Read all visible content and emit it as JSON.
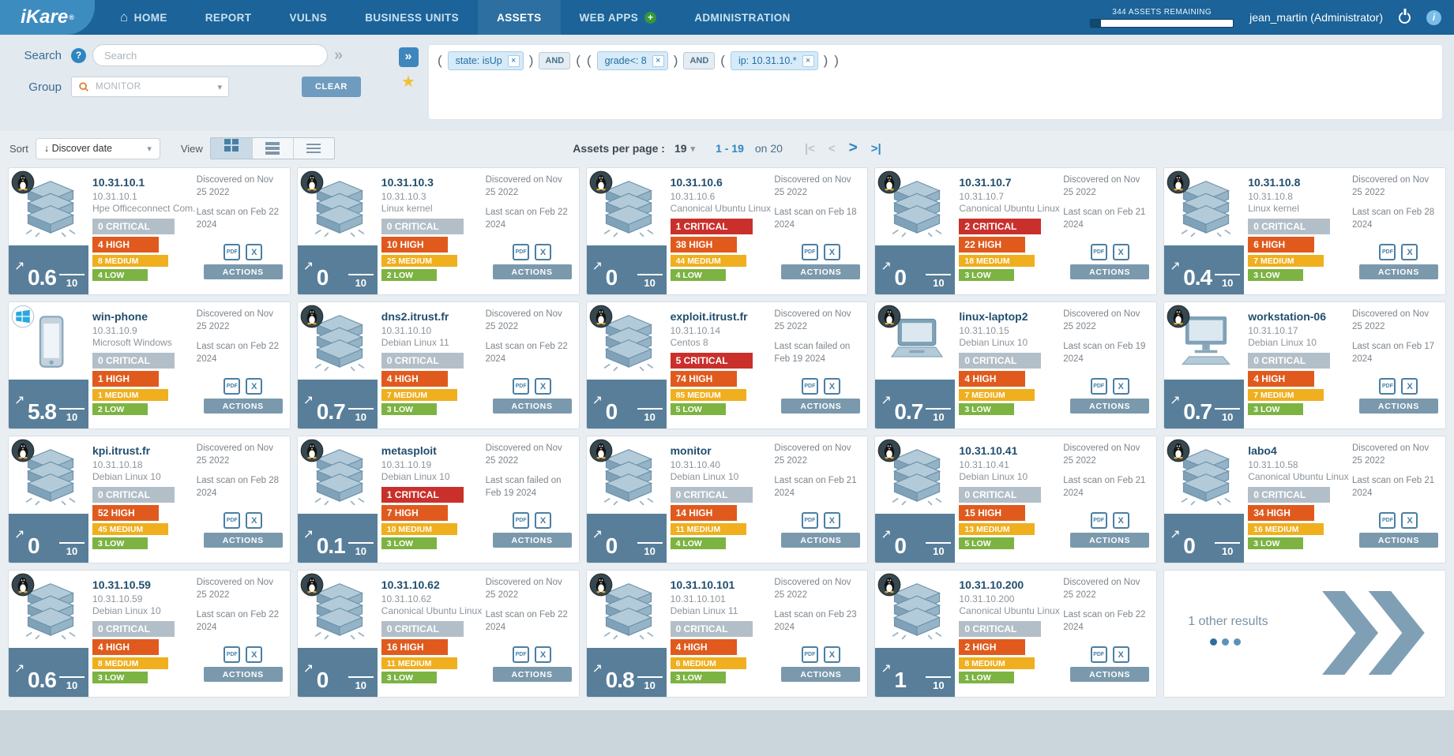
{
  "navbar": {
    "logo": "iKare",
    "items": [
      {
        "label": "HOME",
        "icon": "home"
      },
      {
        "label": "REPORT"
      },
      {
        "label": "VULNS"
      },
      {
        "label": "BUSINESS UNITS"
      },
      {
        "label": "ASSETS",
        "active": true
      },
      {
        "label": "WEB APPS",
        "plus": true
      },
      {
        "label": "ADMINISTRATION"
      }
    ],
    "assets_remaining": "344 ASSETS REMAINING",
    "user": "jean_martin (Administrator)"
  },
  "icons": {
    "home": "⌂",
    "plus": "+",
    "help": "?",
    "info": "i",
    "star": "★",
    "double_chevron": "»",
    "caret": "▾",
    "trend_arrow": "↗"
  },
  "filters": {
    "search_label": "Search",
    "search_placeholder": "Search",
    "group_label": "Group",
    "group_placeholder": "MONITOR",
    "clear_label": "CLEAR",
    "tokens": [
      {
        "type": "paren",
        "text": "("
      },
      {
        "type": "chip",
        "text": "state: isUp"
      },
      {
        "type": "paren",
        "text": ")"
      },
      {
        "type": "op",
        "text": "AND"
      },
      {
        "type": "paren",
        "text": "("
      },
      {
        "type": "paren",
        "text": "("
      },
      {
        "type": "chip",
        "text": "grade<: 8"
      },
      {
        "type": "paren",
        "text": ")"
      },
      {
        "type": "op",
        "text": "AND"
      },
      {
        "type": "paren",
        "text": "("
      },
      {
        "type": "chip",
        "text": "ip: 10.31.10.*"
      },
      {
        "type": "paren",
        "text": ")"
      },
      {
        "type": "paren",
        "text": ")"
      }
    ]
  },
  "toolbar": {
    "sort_label": "Sort",
    "sort_value": "↓ Discover date",
    "view_label": "View",
    "per_page_label": "Assets per page :",
    "per_page_value": "19",
    "range_text": "1 - 19",
    "total_text": "on 20",
    "pager": {
      "first": "|<",
      "prev": "<",
      "next": ">",
      "last": ">|"
    }
  },
  "score_max": "10",
  "severity_labels": {
    "critical": "CRITICAL",
    "high": "HIGH",
    "medium": "MEDIUM",
    "low": "LOW"
  },
  "card_labels": {
    "actions": "ACTIONS",
    "pdf": "PDF",
    "excel": "X"
  },
  "more_card": {
    "text": "1 other results"
  },
  "colors": {
    "navbar": "#1b6398",
    "critical": "#c9302c",
    "critical_zero": "#b3bfc8",
    "high": "#e05a1e",
    "medium": "#efaf1e",
    "low": "#7cb342",
    "score_bg": "#587e99",
    "accent_blue": "#2e86c1"
  },
  "assets": [
    {
      "name": "10.31.10.1",
      "ip": "10.31.10.1",
      "os": "Hpe Officeconnect Com...",
      "discovered": "Discovered on Nov 25 2022",
      "last_scan": "Last scan on Feb 22 2024",
      "score": "0.6",
      "critical": 0,
      "high": 4,
      "medium": 8,
      "low": 4,
      "os_badge": "linux",
      "device": "server"
    },
    {
      "name": "10.31.10.3",
      "ip": "10.31.10.3",
      "os": "Linux kernel",
      "discovered": "Discovered on Nov 25 2022",
      "last_scan": "Last scan on Feb 22 2024",
      "score": "0",
      "critical": 0,
      "high": 10,
      "medium": 25,
      "low": 2,
      "os_badge": "linux",
      "device": "server"
    },
    {
      "name": "10.31.10.6",
      "ip": "10.31.10.6",
      "os": "Canonical Ubuntu Linux ...",
      "discovered": "Discovered on Nov 25 2022",
      "last_scan": "Last scan on Feb 18 2024",
      "score": "0",
      "critical": 1,
      "high": 38,
      "medium": 44,
      "low": 4,
      "os_badge": "linux",
      "device": "server"
    },
    {
      "name": "10.31.10.7",
      "ip": "10.31.10.7",
      "os": "Canonical Ubuntu Linux ...",
      "discovered": "Discovered on Nov 25 2022",
      "last_scan": "Last scan on Feb 21 2024",
      "score": "0",
      "critical": 2,
      "high": 22,
      "medium": 18,
      "low": 3,
      "os_badge": "linux",
      "device": "server"
    },
    {
      "name": "10.31.10.8",
      "ip": "10.31.10.8",
      "os": "Linux kernel",
      "discovered": "Discovered on Nov 25 2022",
      "last_scan": "Last scan on Feb 28 2024",
      "score": "0.4",
      "critical": 0,
      "high": 6,
      "medium": 7,
      "low": 3,
      "os_badge": "linux",
      "device": "server"
    },
    {
      "name": "win-phone",
      "ip": "10.31.10.9",
      "os": "Microsoft Windows",
      "discovered": "Discovered on Nov 25 2022",
      "last_scan": "Last scan on Feb 22 2024",
      "score": "5.8",
      "critical": 0,
      "high": 1,
      "medium": 1,
      "low": 2,
      "os_badge": "windows",
      "device": "phone"
    },
    {
      "name": "dns2.itrust.fr",
      "ip": "10.31.10.10",
      "os": "Debian Linux 11",
      "discovered": "Discovered on Nov 25 2022",
      "last_scan": "Last scan on Feb 22 2024",
      "score": "0.7",
      "critical": 0,
      "high": 4,
      "medium": 7,
      "low": 3,
      "os_badge": "linux",
      "device": "server"
    },
    {
      "name": "exploit.itrust.fr",
      "ip": "10.31.10.14",
      "os": "Centos 8",
      "discovered": "Discovered on Nov 25 2022",
      "last_scan": "Last scan failed on Feb 19 2024",
      "score": "0",
      "critical": 5,
      "high": 74,
      "medium": 85,
      "low": 5,
      "os_badge": "linux",
      "device": "server"
    },
    {
      "name": "linux-laptop2",
      "ip": "10.31.10.15",
      "os": "Debian Linux 10",
      "discovered": "Discovered on Nov 25 2022",
      "last_scan": "Last scan on Feb 19 2024",
      "score": "0.7",
      "critical": 0,
      "high": 4,
      "medium": 7,
      "low": 3,
      "os_badge": "linux",
      "device": "laptop"
    },
    {
      "name": "workstation-06",
      "ip": "10.31.10.17",
      "os": "Debian Linux 10",
      "discovered": "Discovered on Nov 25 2022",
      "last_scan": "Last scan on Feb 17 2024",
      "score": "0.7",
      "critical": 0,
      "high": 4,
      "medium": 7,
      "low": 3,
      "os_badge": "linux",
      "device": "desktop"
    },
    {
      "name": "kpi.itrust.fr",
      "ip": "10.31.10.18",
      "os": "Debian Linux 10",
      "discovered": "Discovered on Nov 25 2022",
      "last_scan": "Last scan on Feb 28 2024",
      "score": "0",
      "critical": 0,
      "high": 52,
      "medium": 45,
      "low": 3,
      "os_badge": "linux",
      "device": "server"
    },
    {
      "name": "metasploit",
      "ip": "10.31.10.19",
      "os": "Debian Linux 10",
      "discovered": "Discovered on Nov 25 2022",
      "last_scan": "Last scan failed on Feb 19 2024",
      "score": "0.1",
      "critical": 1,
      "high": 7,
      "medium": 10,
      "low": 3,
      "os_badge": "linux",
      "device": "server"
    },
    {
      "name": "monitor",
      "ip": "10.31.10.40",
      "os": "Debian Linux 10",
      "discovered": "Discovered on Nov 25 2022",
      "last_scan": "Last scan on Feb 21 2024",
      "score": "0",
      "critical": 0,
      "high": 14,
      "medium": 11,
      "low": 4,
      "os_badge": "linux",
      "device": "server"
    },
    {
      "name": "10.31.10.41",
      "ip": "10.31.10.41",
      "os": "Debian Linux 10",
      "discovered": "Discovered on Nov 25 2022",
      "last_scan": "Last scan on Feb 21 2024",
      "score": "0",
      "critical": 0,
      "high": 15,
      "medium": 13,
      "low": 5,
      "os_badge": "linux",
      "device": "server"
    },
    {
      "name": "labo4",
      "ip": "10.31.10.58",
      "os": "Canonical Ubuntu Linux ...",
      "discovered": "Discovered on Nov 25 2022",
      "last_scan": "Last scan on Feb 21 2024",
      "score": "0",
      "critical": 0,
      "high": 34,
      "medium": 16,
      "low": 3,
      "os_badge": "linux",
      "device": "server"
    },
    {
      "name": "10.31.10.59",
      "ip": "10.31.10.59",
      "os": "Debian Linux 10",
      "discovered": "Discovered on Nov 25 2022",
      "last_scan": "Last scan on Feb 22 2024",
      "score": "0.6",
      "critical": 0,
      "high": 4,
      "medium": 8,
      "low": 3,
      "os_badge": "linux",
      "device": "server"
    },
    {
      "name": "10.31.10.62",
      "ip": "10.31.10.62",
      "os": "Canonical Ubuntu Linux ...",
      "discovered": "Discovered on Nov 25 2022",
      "last_scan": "Last scan on Feb 22 2024",
      "score": "0",
      "critical": 0,
      "high": 16,
      "medium": 11,
      "low": 3,
      "os_badge": "linux",
      "device": "server"
    },
    {
      "name": "10.31.10.101",
      "ip": "10.31.10.101",
      "os": "Debian Linux 11",
      "discovered": "Discovered on Nov 25 2022",
      "last_scan": "Last scan on Feb 23 2024",
      "score": "0.8",
      "critical": 0,
      "high": 4,
      "medium": 6,
      "low": 3,
      "os_badge": "linux",
      "device": "server"
    },
    {
      "name": "10.31.10.200",
      "ip": "10.31.10.200",
      "os": "Canonical Ubuntu Linux ...",
      "discovered": "Discovered on Nov 25 2022",
      "last_scan": "Last scan on Feb 22 2024",
      "score": "1",
      "critical": 0,
      "high": 2,
      "medium": 8,
      "low": 1,
      "os_badge": "linux",
      "device": "server"
    }
  ]
}
